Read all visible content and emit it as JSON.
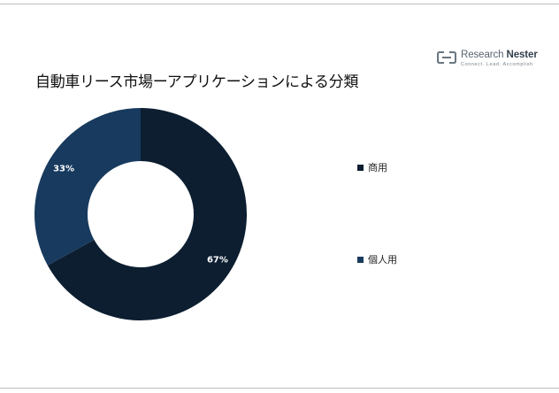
{
  "logo": {
    "name_part1": "Research ",
    "name_part2": "Nester",
    "tagline": "Connect. Lead. Accomplish"
  },
  "title": "自動車リース市場ーアプリケーションによる分類",
  "chart_data": {
    "type": "pie",
    "donut": true,
    "title": "自動車リース市場ーアプリケーションによる分類",
    "categories": [
      "商用",
      "個人用"
    ],
    "values": [
      67,
      33
    ],
    "data_labels": [
      "67%",
      "33%"
    ],
    "colors": [
      "#0c1e30",
      "#183a5e"
    ],
    "legend_position": "right"
  }
}
